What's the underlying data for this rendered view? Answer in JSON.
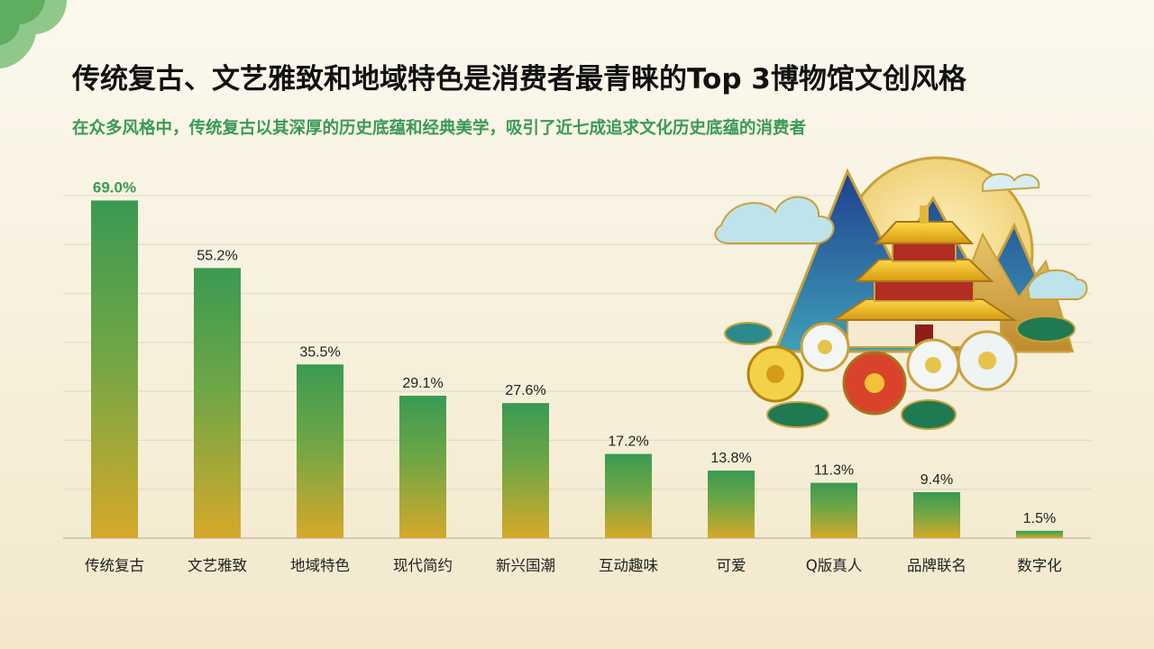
{
  "title": "传统复古、文艺雅致和地域特色是消费者最青睐的Top 3博物馆文创风格",
  "subtitle": "在众多风格中，传统复古以其深厚的历史底蕴和经典美学，吸引了近七成追求文化历史底蕴的消费者",
  "colors": {
    "accent_green": "#3a9a52",
    "bar_top": "#3a9a52",
    "bar_bottom": "#d6a92a",
    "grid": "#ddd6c4"
  },
  "chart_data": {
    "type": "bar",
    "categories": [
      "传统复古",
      "文艺雅致",
      "地域特色",
      "现代简约",
      "新兴国潮",
      "互动趣味",
      "可爱",
      "Q版真人",
      "品牌联名",
      "数字化"
    ],
    "values": [
      69.0,
      55.2,
      35.5,
      29.1,
      27.6,
      17.2,
      13.8,
      11.3,
      9.4,
      1.5
    ],
    "value_labels": [
      "69.0%",
      "55.2%",
      "35.5%",
      "29.1%",
      "27.6%",
      "17.2%",
      "13.8%",
      "11.3%",
      "9.4%",
      "1.5%"
    ],
    "highlight_index": 0,
    "ylim": [
      0,
      70
    ],
    "grid": true,
    "xlabel": "",
    "ylabel": ""
  },
  "decoration": {
    "icon": "palace-emblem-icon",
    "corner": "leaf-corner-icon"
  }
}
